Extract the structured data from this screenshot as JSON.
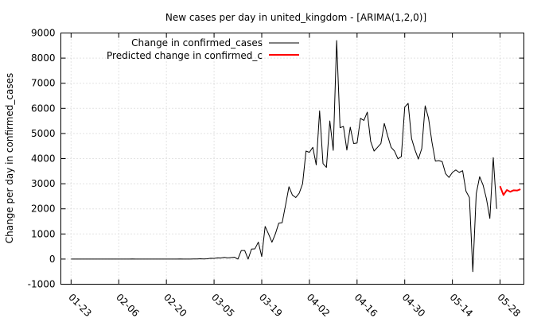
{
  "chart_data": {
    "type": "line",
    "title": "New cases per day in united_kingdom -  [ARIMA(1,2,0)]",
    "xlabel": "",
    "ylabel": "Change per day in confirmed_cases",
    "x_tick_labels": [
      "01-23",
      "02-06",
      "02-20",
      "03-05",
      "03-19",
      "04-02",
      "04-16",
      "04-30",
      "05-14",
      "05-28"
    ],
    "x_tick_dates": [
      "2020-01-23",
      "2020-02-06",
      "2020-02-20",
      "2020-03-05",
      "2020-03-19",
      "2020-04-02",
      "2020-04-16",
      "2020-04-30",
      "2020-05-14",
      "2020-05-28"
    ],
    "xlim": [
      "2020-01-20",
      "2020-06-04"
    ],
    "y_ticks": [
      -1000,
      0,
      1000,
      2000,
      3000,
      4000,
      5000,
      6000,
      7000,
      8000,
      9000
    ],
    "ylim": [
      -1000,
      9000
    ],
    "grid": true,
    "legend_position": "top-left",
    "series": [
      {
        "name": "Change in confirmed_cases",
        "color": "#000000",
        "points": [
          [
            "2020-01-23",
            0
          ],
          [
            "2020-01-24",
            0
          ],
          [
            "2020-01-25",
            0
          ],
          [
            "2020-01-26",
            0
          ],
          [
            "2020-01-27",
            0
          ],
          [
            "2020-01-28",
            0
          ],
          [
            "2020-01-29",
            0
          ],
          [
            "2020-01-30",
            0
          ],
          [
            "2020-01-31",
            2
          ],
          [
            "2020-02-01",
            0
          ],
          [
            "2020-02-02",
            0
          ],
          [
            "2020-02-03",
            0
          ],
          [
            "2020-02-04",
            0
          ],
          [
            "2020-02-05",
            0
          ],
          [
            "2020-02-06",
            1
          ],
          [
            "2020-02-07",
            0
          ],
          [
            "2020-02-08",
            0
          ],
          [
            "2020-02-09",
            1
          ],
          [
            "2020-02-10",
            4
          ],
          [
            "2020-02-11",
            0
          ],
          [
            "2020-02-12",
            0
          ],
          [
            "2020-02-13",
            0
          ],
          [
            "2020-02-14",
            0
          ],
          [
            "2020-02-15",
            0
          ],
          [
            "2020-02-16",
            0
          ],
          [
            "2020-02-17",
            0
          ],
          [
            "2020-02-18",
            0
          ],
          [
            "2020-02-19",
            0
          ],
          [
            "2020-02-20",
            0
          ],
          [
            "2020-02-21",
            0
          ],
          [
            "2020-02-22",
            0
          ],
          [
            "2020-02-23",
            0
          ],
          [
            "2020-02-24",
            4
          ],
          [
            "2020-02-25",
            0
          ],
          [
            "2020-02-26",
            0
          ],
          [
            "2020-02-27",
            2
          ],
          [
            "2020-02-28",
            5
          ],
          [
            "2020-02-29",
            3
          ],
          [
            "2020-03-01",
            12
          ],
          [
            "2020-03-02",
            4
          ],
          [
            "2020-03-03",
            11
          ],
          [
            "2020-03-04",
            34
          ],
          [
            "2020-03-05",
            30
          ],
          [
            "2020-03-06",
            48
          ],
          [
            "2020-03-07",
            43
          ],
          [
            "2020-03-08",
            67
          ],
          [
            "2020-03-09",
            48
          ],
          [
            "2020-03-10",
            61
          ],
          [
            "2020-03-11",
            74
          ],
          [
            "2020-03-12",
            0
          ],
          [
            "2020-03-13",
            342
          ],
          [
            "2020-03-14",
            342
          ],
          [
            "2020-03-15",
            0
          ],
          [
            "2020-03-16",
            400
          ],
          [
            "2020-03-17",
            410
          ],
          [
            "2020-03-18",
            676
          ],
          [
            "2020-03-19",
            100
          ],
          [
            "2020-03-20",
            1300
          ],
          [
            "2020-03-21",
            1000
          ],
          [
            "2020-03-22",
            670
          ],
          [
            "2020-03-23",
            1000
          ],
          [
            "2020-03-24",
            1430
          ],
          [
            "2020-03-25",
            1450
          ],
          [
            "2020-03-26",
            2150
          ],
          [
            "2020-03-27",
            2880
          ],
          [
            "2020-03-28",
            2550
          ],
          [
            "2020-03-29",
            2450
          ],
          [
            "2020-03-30",
            2620
          ],
          [
            "2020-03-31",
            3000
          ],
          [
            "2020-04-01",
            4300
          ],
          [
            "2020-04-02",
            4250
          ],
          [
            "2020-04-03",
            4450
          ],
          [
            "2020-04-04",
            3750
          ],
          [
            "2020-04-05",
            5900
          ],
          [
            "2020-04-06",
            3800
          ],
          [
            "2020-04-07",
            3650
          ],
          [
            "2020-04-08",
            5500
          ],
          [
            "2020-04-09",
            4330
          ],
          [
            "2020-04-10",
            8700
          ],
          [
            "2020-04-11",
            5230
          ],
          [
            "2020-04-12",
            5280
          ],
          [
            "2020-04-13",
            4340
          ],
          [
            "2020-04-14",
            5250
          ],
          [
            "2020-04-15",
            4600
          ],
          [
            "2020-04-16",
            4620
          ],
          [
            "2020-04-17",
            5600
          ],
          [
            "2020-04-18",
            5520
          ],
          [
            "2020-04-19",
            5850
          ],
          [
            "2020-04-20",
            4680
          ],
          [
            "2020-04-21",
            4300
          ],
          [
            "2020-04-22",
            4450
          ],
          [
            "2020-04-23",
            4600
          ],
          [
            "2020-04-24",
            5400
          ],
          [
            "2020-04-25",
            4900
          ],
          [
            "2020-04-26",
            4450
          ],
          [
            "2020-04-27",
            4300
          ],
          [
            "2020-04-28",
            3990
          ],
          [
            "2020-04-29",
            4080
          ],
          [
            "2020-04-30",
            6050
          ],
          [
            "2020-05-01",
            6200
          ],
          [
            "2020-05-02",
            4800
          ],
          [
            "2020-05-03",
            4350
          ],
          [
            "2020-05-04",
            3980
          ],
          [
            "2020-05-05",
            4400
          ],
          [
            "2020-05-06",
            6100
          ],
          [
            "2020-05-07",
            5600
          ],
          [
            "2020-05-08",
            4650
          ],
          [
            "2020-05-09",
            3900
          ],
          [
            "2020-05-10",
            3920
          ],
          [
            "2020-05-11",
            3880
          ],
          [
            "2020-05-12",
            3400
          ],
          [
            "2020-05-13",
            3250
          ],
          [
            "2020-05-14",
            3450
          ],
          [
            "2020-05-15",
            3550
          ],
          [
            "2020-05-16",
            3450
          ],
          [
            "2020-05-17",
            3520
          ],
          [
            "2020-05-18",
            2700
          ],
          [
            "2020-05-19",
            2450
          ],
          [
            "2020-05-20",
            -500
          ],
          [
            "2020-05-21",
            2600
          ],
          [
            "2020-05-22",
            3280
          ],
          [
            "2020-05-23",
            2950
          ],
          [
            "2020-05-24",
            2400
          ],
          [
            "2020-05-25",
            1620
          ],
          [
            "2020-05-26",
            4040
          ],
          [
            "2020-05-27",
            2000
          ]
        ]
      },
      {
        "name": "Predicted change in confirmed_c",
        "color": "#ff0000",
        "points": [
          [
            "2020-05-28",
            2900
          ],
          [
            "2020-05-29",
            2550
          ],
          [
            "2020-05-30",
            2750
          ],
          [
            "2020-05-31",
            2680
          ],
          [
            "2020-06-01",
            2740
          ],
          [
            "2020-06-02",
            2730
          ],
          [
            "2020-06-03",
            2780
          ]
        ]
      }
    ]
  }
}
